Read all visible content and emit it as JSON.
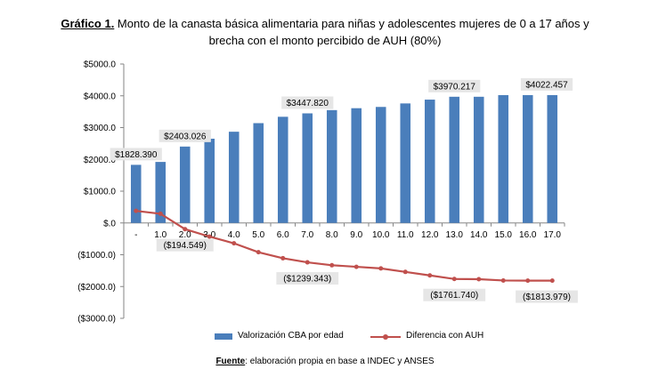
{
  "title": {
    "lead": "Gráfico 1.",
    "line1": " Monto de la canasta básica alimentaria para niñas y adolescentes mujeres de 0 a 17 años y",
    "line2": "brecha con el monto percibido de AUH (80%)"
  },
  "legend": {
    "series1": "Valorización CBA por edad",
    "series2": "Diferencia con AUH"
  },
  "source": {
    "key": "Fuente",
    "text": ": elaboración propia en base a INDEC y ANSES"
  },
  "colors": {
    "bars": "#4a7ebb",
    "line": "#c0504d",
    "axis": "#868686",
    "label_box": "#e6e6e6"
  },
  "chart_data": {
    "type": "bar",
    "categories": [
      "-",
      "1.0",
      "2.0",
      "3.0",
      "4.0",
      "5.0",
      "6.0",
      "7.0",
      "8.0",
      "9.0",
      "10.0",
      "11.0",
      "12.0",
      "13.0",
      "14.0",
      "15.0",
      "16.0",
      "17.0"
    ],
    "ylim": [
      -3000,
      5000
    ],
    "yticks": [
      5000,
      4000,
      3000,
      2000,
      1000,
      0,
      -1000,
      -2000,
      -3000
    ],
    "ytick_labels": [
      "$5000.0",
      "$4000.0",
      "$3000.0",
      "$2000.0",
      "$1000.0",
      "$.0",
      "($1000.0)",
      "($2000.0)",
      "($3000.0)"
    ],
    "grid": false,
    "legend_position": "bottom",
    "series": [
      {
        "name": "Valorización CBA por edad",
        "type": "bar",
        "values": [
          1828.39,
          1920,
          2403.026,
          2650,
          2870,
          3140,
          3340,
          3447.82,
          3550,
          3610,
          3650,
          3760,
          3880,
          3970.217,
          3970,
          4022,
          4022,
          4022.457
        ],
        "data_labels": [
          {
            "index": 0,
            "text": "$1828.390"
          },
          {
            "index": 2,
            "text": "$2403.026"
          },
          {
            "index": 7,
            "text": "$3447.820"
          },
          {
            "index": 13,
            "text": "$3970.217"
          },
          {
            "index": 17,
            "text": "$4022.457"
          }
        ]
      },
      {
        "name": "Diferencia con AUH",
        "type": "line",
        "values": [
          380,
          290,
          -194.549,
          -430,
          -640,
          -920,
          -1110,
          -1239.343,
          -1330,
          -1380,
          -1430,
          -1540,
          -1650,
          -1761.74,
          -1770,
          -1810,
          -1813.979,
          -1813.979
        ],
        "data_labels": [
          {
            "index": 2,
            "text": "($194.549)"
          },
          {
            "index": 7,
            "text": "($1239.343)"
          },
          {
            "index": 13,
            "text": "($1761.740)"
          },
          {
            "index": 17,
            "text": "($1813.979)"
          }
        ]
      }
    ]
  }
}
